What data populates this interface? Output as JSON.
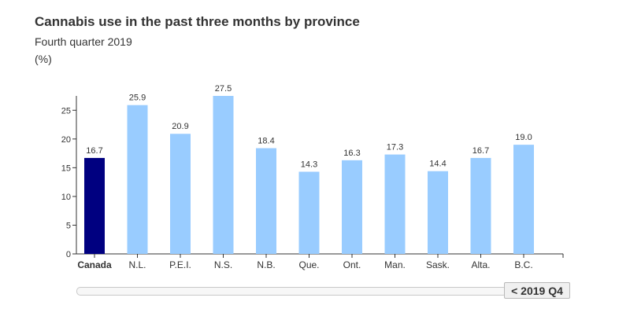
{
  "chart_data": {
    "type": "bar",
    "title": "Cannabis use in the past three months by province",
    "subtitle": "Fourth quarter 2019",
    "unit": "(%)",
    "categories": [
      "Canada",
      "N.L.",
      "P.E.I.",
      "N.S.",
      "N.B.",
      "Que.",
      "Ont.",
      "Man.",
      "Sask.",
      "Alta.",
      "B.C."
    ],
    "values": [
      16.7,
      25.9,
      20.9,
      27.5,
      18.4,
      14.3,
      16.3,
      17.3,
      14.4,
      16.7,
      19.0
    ],
    "value_labels": [
      "16.7",
      "25.9",
      "20.9",
      "27.5",
      "18.4",
      "14.3",
      "16.3",
      "17.3",
      "14.4",
      "16.7",
      "19.0"
    ],
    "highlight_category": "Canada",
    "ylim": [
      0,
      27.5
    ],
    "yticks": [
      0,
      5,
      10,
      15,
      20,
      25
    ],
    "grid": false,
    "colors": {
      "highlight": "#000080",
      "default": "#99ccff",
      "axis": "#333333"
    }
  },
  "timeline": {
    "button_label": "< 2019 Q4"
  }
}
